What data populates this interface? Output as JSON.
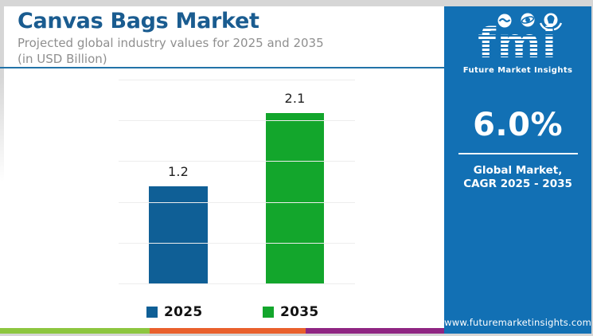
{
  "header": {
    "title": "Canvas Bags Market",
    "subtitle_line1": "Projected global industry values for 2025 and 2035",
    "subtitle_line2": "(in USD Billion)"
  },
  "chart_data": {
    "type": "bar",
    "categories": [
      "2025",
      "2035"
    ],
    "values": [
      1.2,
      2.1
    ],
    "value_labels": [
      "1.2",
      "2.1"
    ],
    "bar_colors": [
      "#0f5f96",
      "#13a62c"
    ],
    "title": "Canvas Bags Market",
    "subtitle": "Projected global industry values for 2025 and 2035 (in USD Billion)",
    "xlabel": "",
    "ylabel": "",
    "ylim": [
      0,
      2.5
    ],
    "grid_step": 0.5,
    "grid": true,
    "legend_position": "bottom",
    "legend": [
      {
        "label": "2025",
        "color": "#0f5f96"
      },
      {
        "label": "2035",
        "color": "#13a62c"
      }
    ]
  },
  "sidebar": {
    "logo": {
      "text": "fmi",
      "tagline": "Future Market Insights"
    },
    "stat_value": "6.0%",
    "stat_label_line1": "Global Market,",
    "stat_label_line2": "CAGR 2025 - 2035",
    "website": "www.futuremarketinsights.com",
    "background": "#1270b4"
  },
  "footer_stripe": {
    "colors": [
      "#8dc63f",
      "#e9602c",
      "#8f2582"
    ]
  },
  "colors": {
    "title": "#1a5c90",
    "subtitle": "#8f8f8f",
    "divider": "#2273a8",
    "frame": "#d6d6d6"
  }
}
